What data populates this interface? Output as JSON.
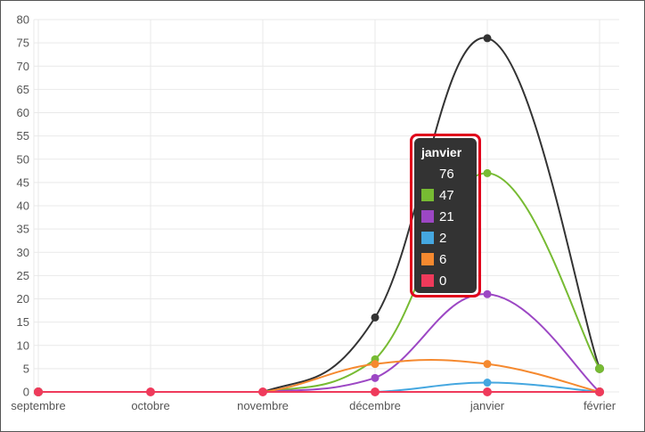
{
  "chart_data": {
    "type": "line",
    "categories": [
      "septembre",
      "octobre",
      "novembre",
      "décembre",
      "janvier",
      "février"
    ],
    "ylim": [
      0,
      80
    ],
    "y_ticks": [
      0,
      5,
      10,
      15,
      20,
      25,
      30,
      35,
      40,
      45,
      50,
      55,
      60,
      65,
      70,
      75,
      80
    ],
    "grid": true,
    "series": [
      {
        "color": "#333333",
        "values": [
          0,
          0,
          0,
          16,
          76,
          5
        ]
      },
      {
        "color": "#77bb33",
        "values": [
          0,
          0,
          0,
          7,
          47,
          5
        ]
      },
      {
        "color": "#9c47c4",
        "values": [
          0,
          0,
          0,
          3,
          21,
          0
        ]
      },
      {
        "color": "#45a7e0",
        "values": [
          0,
          0,
          0,
          0,
          2,
          0
        ]
      },
      {
        "color": "#f5892f",
        "values": [
          0,
          0,
          0,
          6,
          6,
          0
        ]
      },
      {
        "color": "#ef3a5b",
        "values": [
          0,
          0,
          0,
          0,
          0,
          0
        ]
      }
    ],
    "tooltip": {
      "title": "janvier",
      "rows": [
        {
          "label": "76",
          "color": "#333333"
        },
        {
          "label": "47",
          "color": "#77bb33"
        },
        {
          "label": "21",
          "color": "#9c47c4"
        },
        {
          "label": "2",
          "color": "#45a7e0"
        },
        {
          "label": "6",
          "color": "#f5892f"
        },
        {
          "label": "0",
          "color": "#ef3a5b"
        }
      ]
    }
  }
}
